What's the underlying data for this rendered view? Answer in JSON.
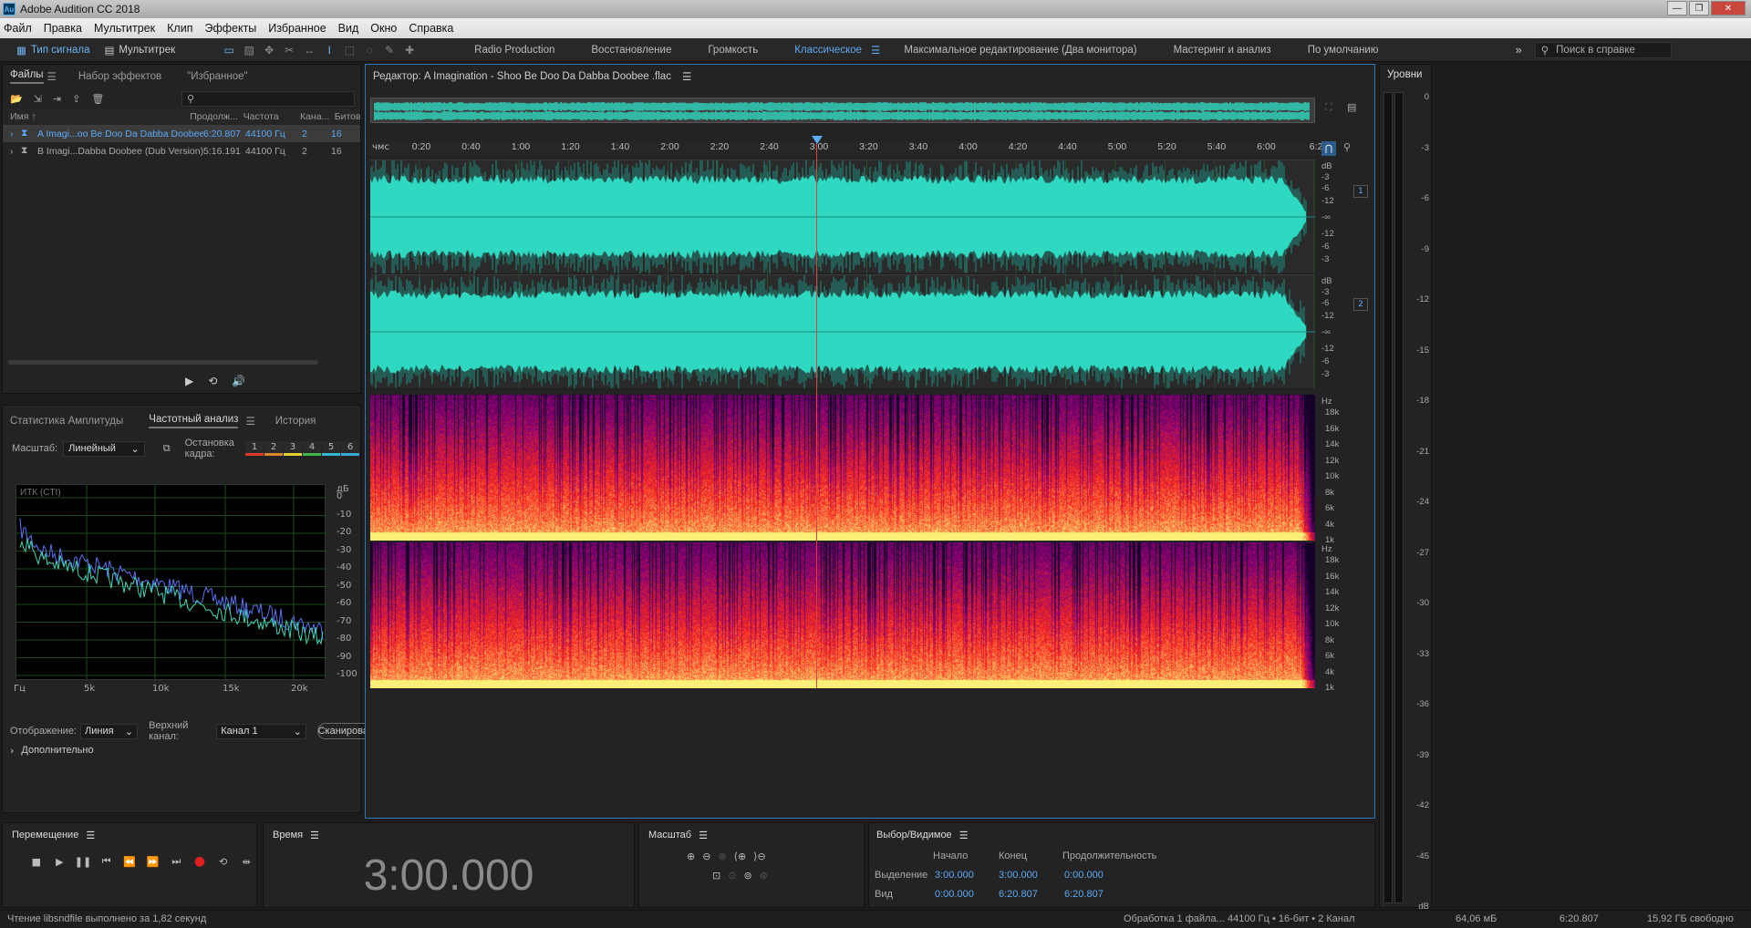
{
  "app": {
    "title": "Adobe Audition CC 2018",
    "logo": "Au"
  },
  "window_controls": {
    "minimize": "—",
    "restore": "❐",
    "close": "✕"
  },
  "menu": [
    "Файл",
    "Правка",
    "Мультитрек",
    "Клип",
    "Эффекты",
    "Избранное",
    "Вид",
    "Окно",
    "Справка"
  ],
  "toolbar": {
    "waveform_btn": "Тип сигнала",
    "multitrack_btn": "Мультитрек",
    "workspaces": [
      "Radio Production",
      "Восстановление",
      "Громкость",
      "Классическое",
      "Максимальное редактирование (Два монитора)",
      "Мастеринг и анализ",
      "По умолчанию"
    ],
    "active_workspace": "Классическое",
    "more": "»",
    "search_placeholder": "Поиск в справке"
  },
  "files_panel": {
    "tabs": [
      "Файлы",
      "Набор эффектов",
      "\"Избранное\""
    ],
    "search_placeholder": "",
    "columns": [
      "Имя",
      "Продолж...",
      "Частота",
      "Кана...",
      "Битов"
    ],
    "rows": [
      {
        "name": "A Imagi...oo Be Doo Da Dabba Doobee .flac",
        "duration": "6:20.807",
        "rate": "44100 Гц",
        "channels": "2",
        "bits": "16",
        "selected": true
      },
      {
        "name": "B Imagi...Dabba Doobee (Dub Version).flac",
        "duration": "5:16.191",
        "rate": "44100 Гц",
        "channels": "2",
        "bits": "16",
        "selected": false
      }
    ]
  },
  "analysis_panel": {
    "tabs": [
      "Статистика Амплитуды",
      "Частотный анализ",
      "История"
    ],
    "scale_label": "Масштаб:",
    "scale_value": "Линейный",
    "freeze_label": "Остановка кадра:",
    "freeze_slots": [
      "1",
      "2",
      "3",
      "4",
      "5",
      "6"
    ],
    "freeze_colors": [
      "#d93a2b",
      "#e0862a",
      "#e5d02c",
      "#3eb84a",
      "#32b7d7",
      "#3aa7d8"
    ],
    "ctl_label": "ИТК (CTI)",
    "db_unit": "дБ",
    "db_ticks": [
      "0",
      "-10",
      "-20",
      "-30",
      "-40",
      "-50",
      "-60",
      "-70",
      "-80",
      "-90",
      "-100"
    ],
    "hz_ticks": [
      "Гц",
      "5k",
      "10k",
      "15k",
      "20k"
    ],
    "display_label": "Отображение:",
    "display_value": "Линия",
    "top_channel_label": "Верхний канал:",
    "top_channel_value": "Канал 1",
    "scan_btn": "Сканировать",
    "advanced": "Дополнительно"
  },
  "editor": {
    "title": "Редактор: A Imagination - Shoo Be Doo Da Dabba Doobee .flac",
    "ruler_unit": "чмс",
    "ruler_ticks": [
      "0:20",
      "0:40",
      "1:00",
      "1:20",
      "1:40",
      "2:00",
      "2:20",
      "2:40",
      "3:00",
      "3:20",
      "3:40",
      "4:00",
      "4:20",
      "4:40",
      "5:00",
      "5:20",
      "5:40",
      "6:00",
      "6:2"
    ],
    "db_labels": [
      "dB",
      "-3",
      "-6",
      "-12",
      "-∞",
      "-12",
      "-6",
      "-3"
    ],
    "channel_badges": [
      "1",
      "2"
    ],
    "hz_labels": [
      "Hz",
      "18k",
      "16k",
      "14k",
      "12k",
      "10k",
      "8k",
      "6k",
      "4k",
      "1k"
    ],
    "playhead_time": "3:00",
    "total_length": "6:20.807"
  },
  "levels_panel": {
    "title": "Уровни",
    "ticks": [
      "0",
      "-3",
      "-6",
      "-9",
      "-12",
      "-15",
      "-18",
      "-21",
      "-24",
      "-27",
      "-30",
      "-33",
      "-36",
      "-39",
      "-42",
      "-45",
      "dB"
    ]
  },
  "transport": {
    "title": "Перемещение",
    "buttons": [
      "stop",
      "play",
      "pause",
      "to-start",
      "rewind",
      "fast-forward",
      "to-end",
      "record",
      "loop",
      "skip"
    ]
  },
  "time_panel": {
    "title": "Время",
    "value": "3:00.000"
  },
  "zoom_panel": {
    "title": "Масштаб"
  },
  "selection_panel": {
    "title": "Выбор/Видимое",
    "headers": [
      "Начало",
      "Конец",
      "Продолжительность"
    ],
    "rows": [
      {
        "label": "Выделение",
        "start": "3:00.000",
        "end": "3:00.000",
        "duration": "0:00.000"
      },
      {
        "label": "Вид",
        "start": "0:00.000",
        "end": "6:20.807",
        "duration": "6:20.807"
      }
    ]
  },
  "status": {
    "left": "Чтение libsndfile выполнено за 1,82 секунд",
    "processing": "Обработка 1 файла...",
    "format": "44100 Гц • 16-бит • 2 Канал",
    "size": "64,06 мБ",
    "duration": "6:20.807",
    "free": "15,92 ГБ свободно"
  },
  "colors": {
    "waveform": "#2fd8c0",
    "accent": "#5ea9f5",
    "playhead": "#e04040",
    "record": "#e02020"
  }
}
